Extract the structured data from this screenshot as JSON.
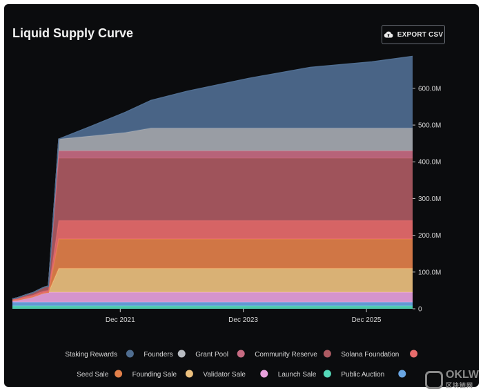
{
  "header": {
    "title": "Liquid Supply Curve",
    "export_label": "EXPORT CSV",
    "export_icon": "cloud-upload-icon"
  },
  "chart_data": {
    "type": "area",
    "stacked": true,
    "x": [
      "2020-03",
      "2020-04",
      "2020-05",
      "2020-06",
      "2020-07",
      "2020-08",
      "2020-09",
      "2020-10",
      "2020-12",
      "2021-06",
      "2022-01",
      "2022-06",
      "2023-01",
      "2024-01",
      "2025-01",
      "2026-01",
      "2026-09"
    ],
    "x_ticks": [
      "Dec 2021",
      "Dec 2023",
      "Dec 2025"
    ],
    "y_ticks": [
      "0",
      "100.0M",
      "200.0M",
      "300.0M",
      "400.0M",
      "500.0M",
      "600.0M"
    ],
    "ylim": [
      0,
      690000000
    ],
    "grid": false,
    "legend_position": "bottom",
    "series": [
      {
        "name": "Launch Sale",
        "color": "#55d8b9",
        "values": [
          8000000,
          8000000,
          8000000,
          8000000,
          8000000,
          8000000,
          8000000,
          8000000,
          8000000,
          8000000,
          8000000,
          8000000,
          8000000,
          8000000,
          8000000,
          8000000,
          8000000
        ]
      },
      {
        "name": "Public Auction",
        "color": "#6aa6e3",
        "values": [
          10000000,
          10000000,
          10000000,
          10000000,
          10000000,
          10000000,
          10000000,
          10000000,
          10000000,
          10000000,
          10000000,
          10000000,
          10000000,
          10000000,
          10000000,
          10000000,
          10000000
        ]
      },
      {
        "name": "Validator Sale",
        "color": "#e7a1dc",
        "values": [
          5000000,
          6000000,
          9000000,
          12000000,
          15000000,
          20000000,
          25000000,
          27000000,
          27000000,
          27000000,
          27000000,
          27000000,
          27000000,
          27000000,
          27000000,
          27000000,
          27000000
        ]
      },
      {
        "name": "Founding Sale",
        "color": "#ecc07e",
        "values": [
          0,
          0,
          0,
          0,
          0,
          0,
          0,
          0,
          65000000,
          65000000,
          65000000,
          65000000,
          65000000,
          65000000,
          65000000,
          65000000,
          65000000
        ]
      },
      {
        "name": "Seed Sale",
        "color": "#e2804a",
        "values": [
          0,
          0,
          0,
          0,
          0,
          0,
          0,
          0,
          80000000,
          80000000,
          80000000,
          80000000,
          80000000,
          80000000,
          80000000,
          80000000,
          80000000
        ]
      },
      {
        "name": "Solana Foundation",
        "color": "#e86c6c",
        "values": [
          2000000,
          3000000,
          4000000,
          4000000,
          4000000,
          5000000,
          5000000,
          5000000,
          50000000,
          50000000,
          50000000,
          50000000,
          50000000,
          50000000,
          50000000,
          50000000,
          50000000
        ]
      },
      {
        "name": "Community Reserve",
        "color": "#ad5a62",
        "values": [
          2000000,
          3000000,
          4000000,
          6000000,
          7000000,
          8000000,
          10000000,
          12000000,
          170000000,
          170000000,
          170000000,
          170000000,
          170000000,
          170000000,
          170000000,
          170000000,
          170000000
        ]
      },
      {
        "name": "Grant Pool",
        "color": "#c76b82",
        "values": [
          0,
          0,
          0,
          0,
          0,
          0,
          0,
          0,
          20000000,
          20000000,
          20000000,
          20000000,
          20000000,
          20000000,
          20000000,
          20000000,
          20000000
        ]
      },
      {
        "name": "Founders",
        "color": "#a6aab1",
        "values": [
          0,
          0,
          0,
          0,
          0,
          0,
          0,
          0,
          32000000,
          40000000,
          50000000,
          62000000,
          62000000,
          62000000,
          62000000,
          62000000,
          62000000
        ]
      },
      {
        "name": "Staking Rewards",
        "color": "#4f6d90",
        "values": [
          0,
          0,
          0,
          0,
          0,
          0,
          0,
          0,
          0,
          25000000,
          55000000,
          75000000,
          100000000,
          135000000,
          165000000,
          180000000,
          195000000
        ]
      }
    ],
    "legend": [
      {
        "name": "Staking Rewards",
        "color": "#4f6d90"
      },
      {
        "name": "Founders",
        "color": "#b8bcc2"
      },
      {
        "name": "Grant Pool",
        "color": "#c76b82"
      },
      {
        "name": "Community Reserve",
        "color": "#ad5a62"
      },
      {
        "name": "Solana Foundation",
        "color": "#e86c6c"
      },
      {
        "name": "Seed Sale",
        "color": "#e2804a"
      },
      {
        "name": "Founding Sale",
        "color": "#ecc07e"
      },
      {
        "name": "Validator Sale",
        "color": "#e7a1dc"
      },
      {
        "name": "Launch Sale",
        "color": "#55d8b9"
      },
      {
        "name": "Public Auction",
        "color": "#6aa6e3"
      }
    ]
  },
  "watermark": {
    "text": "OKLW",
    "subtext": "区块链网"
  }
}
